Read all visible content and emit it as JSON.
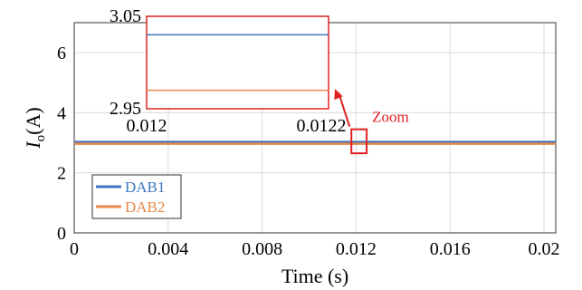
{
  "chart_data": {
    "type": "line",
    "xlabel": "Time (s)",
    "ylabel": "I_o(A)",
    "ylabel_main": "I",
    "ylabel_sub": "o",
    "ylabel_unit": "(A)",
    "xlim": [
      0,
      0.0205
    ],
    "ylim": [
      0,
      7
    ],
    "x_ticks": [
      "0",
      "0.004",
      "0.008",
      "0.012",
      "0.016",
      "0.02"
    ],
    "y_ticks": [
      "0",
      "2",
      "4",
      "6"
    ],
    "grid": true,
    "legend_placement": "bottom-left",
    "series": [
      {
        "name": "DAB1",
        "color": "#3f75c0",
        "x": [
          0,
          0.0205
        ],
        "values": [
          3.03,
          3.03
        ]
      },
      {
        "name": "DAB2",
        "color": "#e8884a",
        "x": [
          0,
          0.0205
        ],
        "values": [
          2.97,
          2.97
        ]
      }
    ],
    "inset": {
      "xlim": [
        0.012,
        0.0122
      ],
      "ylim": [
        2.95,
        3.05
      ],
      "x_ticks": [
        "0.012",
        "0.0122"
      ],
      "y_ticks": [
        "3.05",
        "2.95"
      ],
      "series_values": {
        "DAB1": 3.03,
        "DAB2": 2.97
      },
      "border_color": "#e02020"
    },
    "annotation": {
      "text": "Zoom",
      "color": "#e02020",
      "zoom_box_x": [
        0.0118,
        0.01245
      ],
      "zoom_box_y": [
        2.65,
        3.45
      ]
    }
  }
}
